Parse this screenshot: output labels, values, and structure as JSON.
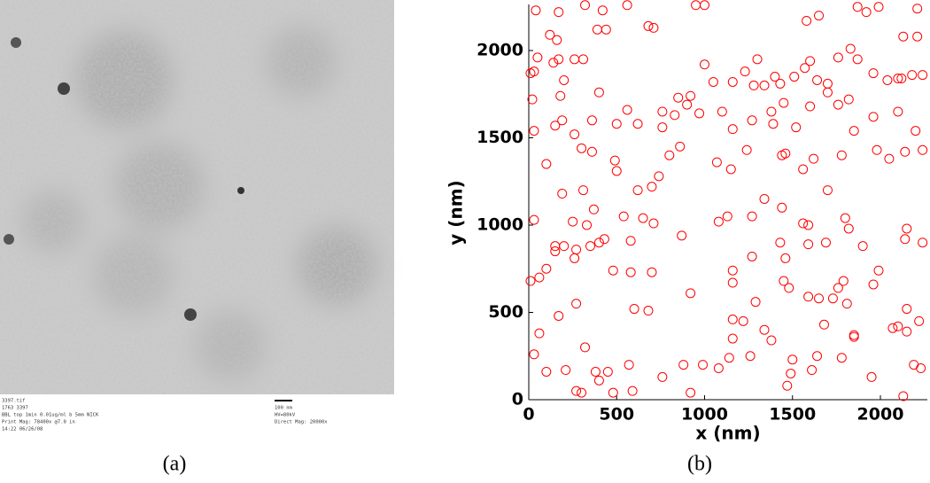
{
  "image_panel": {
    "info_left": [
      "3397.tif",
      "1763 3397",
      "BBL top 1min 0.01ug/ml b 5mm NICK",
      "Print Mag: 78400x @7.0 in",
      "14:22 06/26/08"
    ],
    "info_right": [
      "100 nm",
      "HV=80kV",
      "Direct Mag: 20000x"
    ],
    "caption": "(a)"
  },
  "chart_data": {
    "type": "scatter",
    "caption": "(b)",
    "xlabel": "x (nm)",
    "ylabel": "y (nm)",
    "color": "#ff0000",
    "xlim": [
      0,
      2267
    ],
    "ylim": [
      0,
      2264
    ],
    "xticks": [
      0,
      500,
      1000,
      1500,
      2000
    ],
    "yticks": [
      0,
      500,
      1000,
      1500,
      2000
    ],
    "x": [
      40,
      170,
      320,
      420,
      560,
      950,
      1000,
      1870,
      1990,
      2210,
      120,
      160,
      390,
      440,
      680,
      710,
      1580,
      1650,
      2130,
      2210,
      1920,
      10,
      30,
      50,
      140,
      170,
      200,
      260,
      310,
      1000,
      1050,
      1160,
      1280,
      1300,
      1340,
      1400,
      1510,
      1570,
      1600,
      1700,
      1760,
      1830,
      1870,
      1960,
      2040,
      2120,
      2180,
      2240,
      2100,
      1230,
      1430,
      850,
      920,
      1640,
      20,
      180,
      190,
      150,
      260,
      360,
      400,
      560,
      760,
      760,
      830,
      900,
      970,
      1100,
      1160,
      1270,
      1390,
      1450,
      1520,
      1600,
      1700,
      1760,
      1820,
      1960,
      2100,
      2200,
      30,
      500,
      620,
      1380,
      1850,
      100,
      190,
      300,
      360,
      490,
      500,
      620,
      700,
      740,
      800,
      860,
      1070,
      1150,
      1240,
      1440,
      1460,
      1560,
      1620,
      1780,
      1980,
      2050,
      2140,
      2240,
      1700,
      1340,
      310,
      30,
      150,
      200,
      330,
      270,
      350,
      400,
      430,
      540,
      580,
      650,
      710,
      870,
      1080,
      1130,
      1270,
      1440,
      1430,
      1560,
      1590,
      1800,
      1820,
      1900,
      2140,
      2240,
      2150,
      1460,
      1690,
      1590,
      370,
      250,
      10,
      60,
      100,
      150,
      260,
      480,
      580,
      700,
      920,
      1160,
      1160,
      1270,
      1290,
      1450,
      1480,
      1590,
      1650,
      1760,
      1790,
      1960,
      1990,
      2150,
      2220,
      2100,
      60,
      170,
      270,
      600,
      680,
      1160,
      1220,
      1340,
      1380,
      1680,
      1730,
      1810,
      1850,
      30,
      100,
      210,
      270,
      300,
      380,
      400,
      450,
      480,
      590,
      570,
      760,
      920,
      990,
      1080,
      1160,
      1140,
      1260,
      1470,
      1490,
      1610,
      1640,
      1850,
      1950,
      2070,
      2130,
      2190,
      2230,
      2150,
      880,
      320,
      1780,
      1500
    ],
    "values": [
      2230,
      2220,
      2260,
      2230,
      2260,
      2260,
      2260,
      2250,
      2250,
      2240,
      2090,
      2060,
      2120,
      2120,
      2140,
      2130,
      2170,
      2200,
      2080,
      2080,
      2220,
      1870,
      1880,
      1960,
      1930,
      1950,
      1830,
      1950,
      1950,
      1920,
      1820,
      1820,
      1800,
      1950,
      1800,
      1850,
      1850,
      1900,
      1940,
      1810,
      1960,
      2010,
      1950,
      1870,
      1830,
      1840,
      1860,
      1860,
      1840,
      1880,
      1810,
      1730,
      1740,
      1830,
      1720,
      1740,
      1600,
      1570,
      1520,
      1600,
      1760,
      1660,
      1650,
      1560,
      1630,
      1690,
      1640,
      1650,
      1550,
      1600,
      1580,
      1700,
      1560,
      1680,
      1760,
      1690,
      1720,
      1620,
      1650,
      1540,
      1540,
      1580,
      1580,
      1650,
      1540,
      1350,
      1180,
      1440,
      1420,
      1370,
      1310,
      1200,
      1220,
      1280,
      1400,
      1450,
      1360,
      1320,
      1430,
      1400,
      1410,
      1320,
      1380,
      1400,
      1430,
      1380,
      1420,
      1430,
      1200,
      1150,
      1200,
      1030,
      880,
      880,
      1000,
      860,
      880,
      900,
      920,
      1050,
      910,
      1040,
      1010,
      940,
      1020,
      1050,
      1050,
      1100,
      900,
      1010,
      890,
      1040,
      980,
      880,
      920,
      900,
      980,
      810,
      900,
      1000,
      1090,
      1020,
      680,
      700,
      750,
      850,
      810,
      740,
      730,
      730,
      610,
      740,
      670,
      820,
      560,
      680,
      640,
      590,
      580,
      640,
      680,
      660,
      740,
      520,
      450,
      420,
      380,
      480,
      550,
      520,
      510,
      460,
      450,
      400,
      340,
      430,
      580,
      550,
      360,
      260,
      160,
      170,
      50,
      40,
      160,
      110,
      160,
      40,
      50,
      200,
      130,
      40,
      200,
      180,
      350,
      240,
      250,
      80,
      150,
      170,
      250,
      370,
      130,
      410,
      20,
      200,
      180,
      390,
      200,
      300,
      240,
      230
    ]
  }
}
